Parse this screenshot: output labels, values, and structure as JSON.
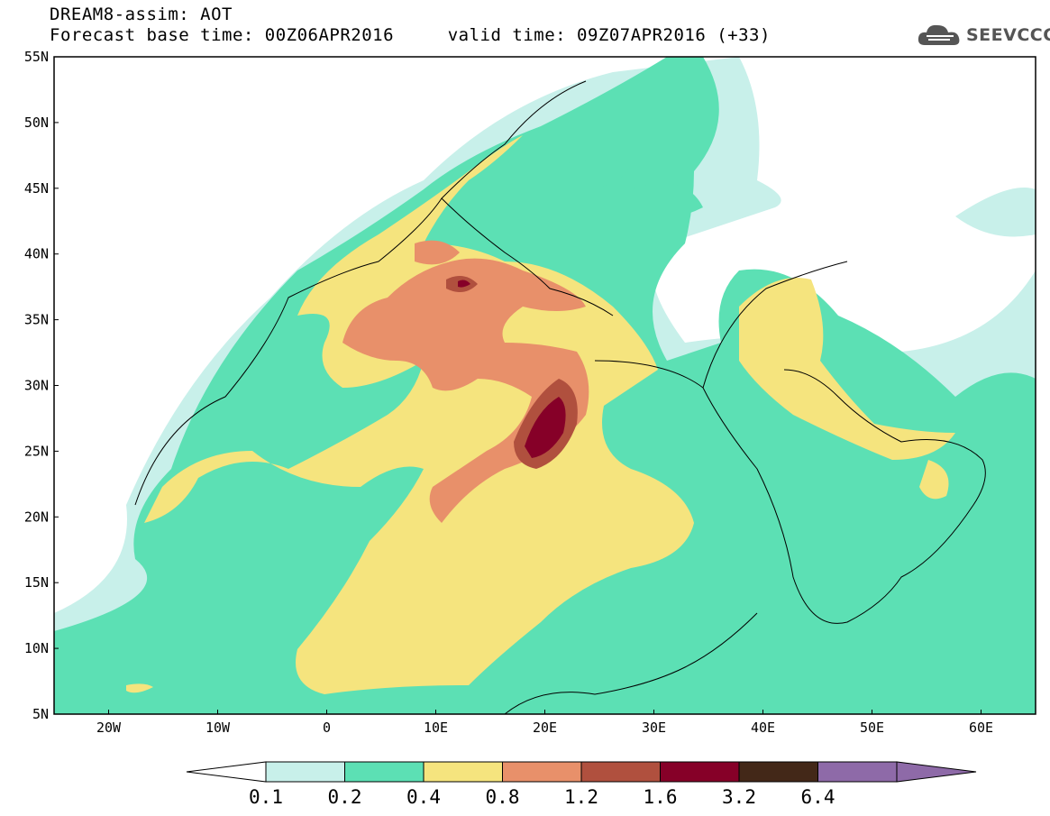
{
  "header": {
    "title": "DREAM8-assim: AOT",
    "subtitle": "Forecast base time: 00Z06APR2016     valid time: 09Z07APR2016 (+33)"
  },
  "logo": {
    "text": "SEEVCCC",
    "icon": "cloud-icon"
  },
  "map": {
    "variable": "AOT",
    "lon_range": [
      -25,
      65
    ],
    "lat_range": [
      5,
      55
    ],
    "lat_labels": [
      "55N",
      "50N",
      "45N",
      "40N",
      "35N",
      "30N",
      "25N",
      "20N",
      "15N",
      "10N",
      "5N"
    ],
    "lon_labels": [
      "20W",
      "10W",
      "0",
      "10E",
      "20E",
      "30E",
      "40E",
      "50E",
      "60E"
    ]
  },
  "colorbar": {
    "labels": [
      "0.1",
      "0.2",
      "0.4",
      "0.8",
      "1.2",
      "1.6",
      "3.2",
      "6.4"
    ],
    "colors": [
      "#ffffff",
      "#c8f0ea",
      "#5ce0b4",
      "#f5e47e",
      "#e8906a",
      "#b0503e",
      "#860028",
      "#432818",
      "#8e6aa8"
    ]
  }
}
